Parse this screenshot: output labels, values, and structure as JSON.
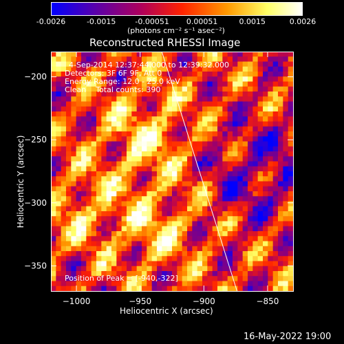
{
  "colorbar": {
    "ticks": [
      "-0.0026",
      "-0.0015",
      "-0.00051",
      "0.00051",
      "0.0015",
      "0.0026"
    ],
    "unit_label": "(photons cm⁻² s⁻¹ asec⁻²)",
    "colors": [
      "#0000ff",
      "#5b00a8",
      "#b0005a",
      "#ff2200",
      "#ff9900",
      "#ffff66",
      "#ffffff"
    ]
  },
  "annotations": {
    "time_range": "4-Sep-2014 12:37:44.000 to 12:39:32.000",
    "detectors": "Detectors: 3F 6F 9F, Att 0",
    "energy": "Energy Range: 12.0 - 25.0 keV",
    "clean": "Clean    Total counts: 390",
    "peak": "Position of Peak = [-940,-322]"
  },
  "footer_date": "16-May-2022 19:00",
  "chart_data": {
    "type": "heatmap",
    "title": "Reconstructed RHESSI Image",
    "xlabel": "Heliocentric X (arcsec)",
    "ylabel": "Heliocentric Y (arcsec)",
    "xlim": [
      -1020,
      -830
    ],
    "ylim": [
      -370,
      -180
    ],
    "xticks": [
      -1000,
      -950,
      -900,
      -850
    ],
    "yticks": [
      -350,
      -300,
      -250,
      -200
    ],
    "limb": [
      [
        -933,
        -180
      ],
      [
        -874,
        -370
      ]
    ],
    "peak": [
      -940,
      -322
    ],
    "value_range": [
      -0.0026,
      0.0026
    ]
  }
}
